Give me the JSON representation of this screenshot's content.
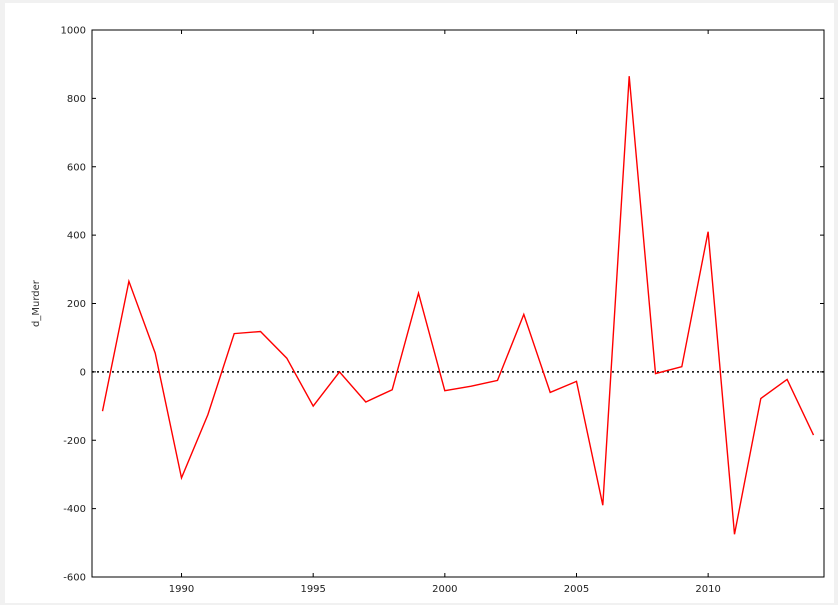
{
  "chart_data": {
    "type": "line",
    "title": "",
    "xlabel": "",
    "ylabel": "d_Murder",
    "xlim": [
      1986.6,
      2014.4
    ],
    "ylim": [
      -600,
      1000
    ],
    "x_ticks": [
      1990,
      1995,
      2000,
      2005,
      2010
    ],
    "y_ticks": [
      -600,
      -400,
      -200,
      0,
      200,
      400,
      600,
      800,
      1000
    ],
    "x_tick_labels": [
      "1990",
      "1995",
      "2000",
      "2005",
      "2010"
    ],
    "y_tick_labels": [
      "-600",
      "-400",
      "-200",
      "0",
      "200",
      "400",
      "600",
      "800",
      "1000"
    ],
    "reference_line": {
      "y": 0,
      "style": "dotted",
      "color": "#000000"
    },
    "grid": false,
    "legend": "none",
    "series": [
      {
        "color": "#ff0000",
        "x": [
          1987,
          1988,
          1989,
          1990,
          1991,
          1992,
          1993,
          1994,
          1995,
          1996,
          1997,
          1998,
          1999,
          2000,
          2001,
          2002,
          2003,
          2004,
          2005,
          2006,
          2007,
          2008,
          2009,
          2010,
          2011,
          2012,
          2013,
          2014
        ],
        "y": [
          -115,
          265,
          55,
          -310,
          -125,
          112,
          118,
          40,
          -100,
          0,
          -88,
          -52,
          230,
          -55,
          -42,
          -25,
          168,
          -60,
          -28,
          -390,
          865,
          -5,
          15,
          410,
          -475,
          -78,
          -22,
          -185
        ]
      }
    ]
  }
}
